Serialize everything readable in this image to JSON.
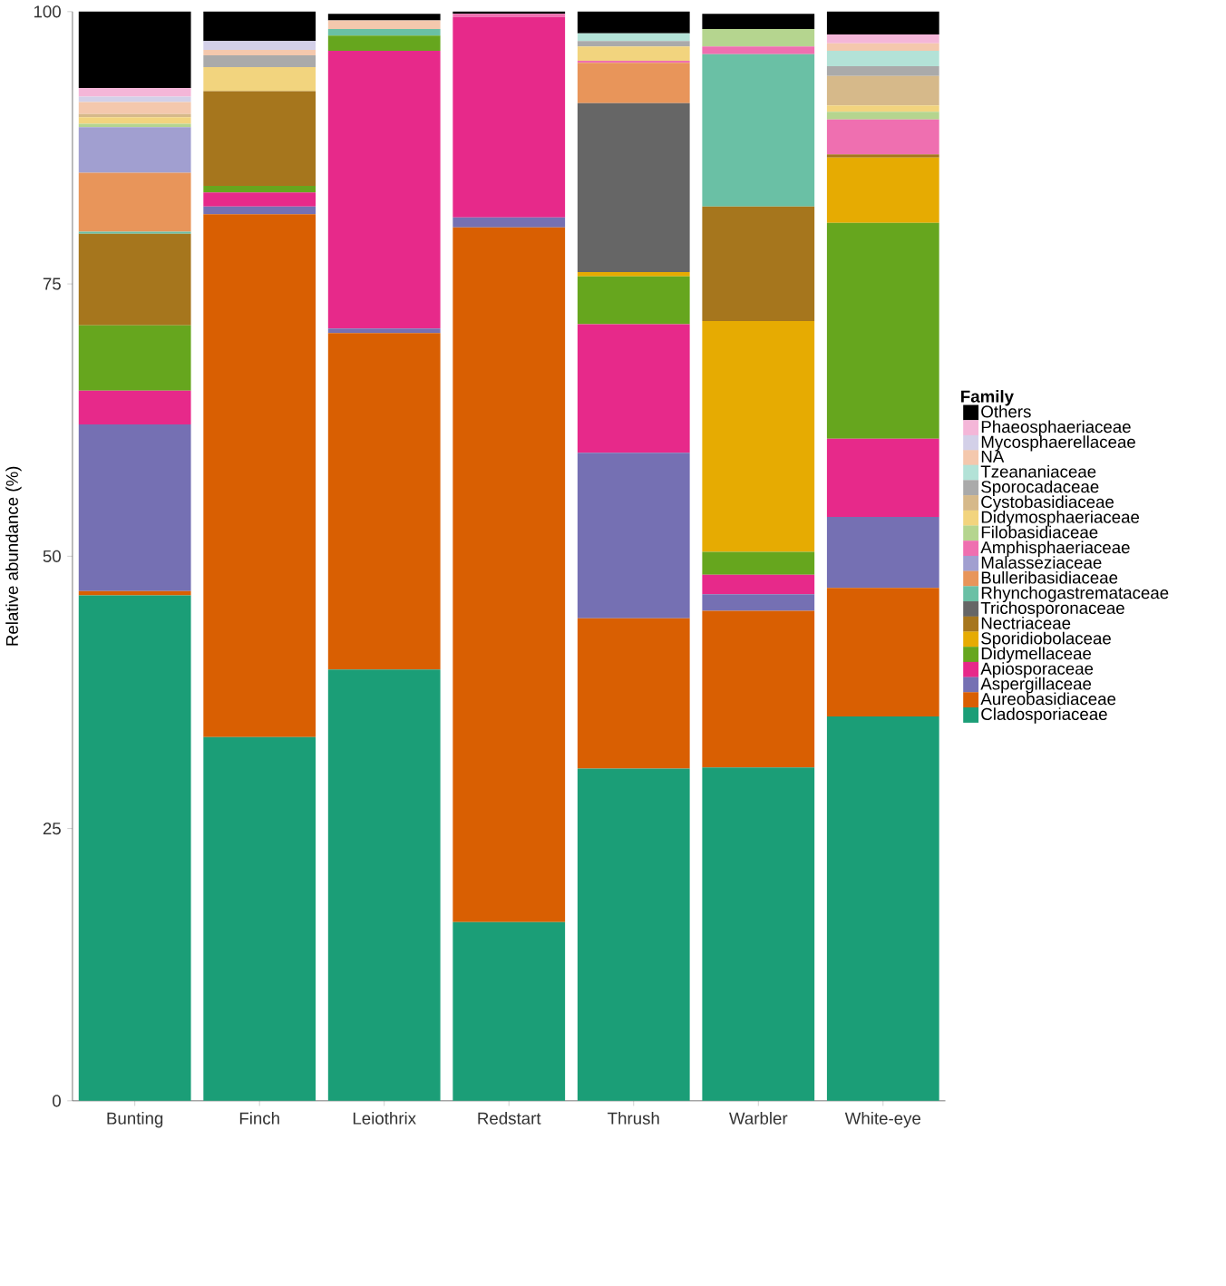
{
  "chart_data": {
    "type": "bar",
    "stacked": true,
    "ylabel": "Relative abundance (%)",
    "legend_title": "Family",
    "legend": "right",
    "categories": [
      "Bunting",
      "Finch",
      "Leiothrix",
      "Redstart",
      "Thrush",
      "Warbler",
      "White-eye"
    ],
    "ylim": [
      0,
      100
    ],
    "yticks": [
      0,
      25,
      50,
      75,
      100
    ],
    "series": [
      {
        "name": "Cladosporiaceae",
        "color": "#1b9e77",
        "values": [
          46.4,
          33.4,
          39.6,
          16.4,
          30.5,
          30.6,
          35.3
        ]
      },
      {
        "name": "Aureobasidiaceae",
        "color": "#d95f02",
        "values": [
          0.4,
          48.0,
          30.9,
          63.8,
          13.8,
          14.4,
          11.8
        ]
      },
      {
        "name": "Aspergillaceae",
        "color": "#7570b3",
        "values": [
          15.3,
          0.7,
          0.4,
          0.9,
          15.2,
          1.5,
          6.5
        ]
      },
      {
        "name": "Apiosporaceae",
        "color": "#e7298a",
        "values": [
          3.1,
          1.3,
          25.5,
          18.4,
          11.8,
          1.8,
          7.2
        ]
      },
      {
        "name": "Didymellaceae",
        "color": "#66a61e",
        "values": [
          6.0,
          0.6,
          1.4,
          null,
          4.4,
          2.1,
          19.8
        ]
      },
      {
        "name": "Sporidiobolaceae",
        "color": "#e6ab02",
        "values": [
          null,
          null,
          null,
          null,
          0.4,
          21.2,
          6.0
        ]
      },
      {
        "name": "Nectriaceae",
        "color": "#a6761d",
        "values": [
          8.4,
          8.7,
          null,
          null,
          null,
          10.5,
          0.3
        ]
      },
      {
        "name": "Trichosporonaceae",
        "color": "#666666",
        "values": [
          null,
          null,
          null,
          null,
          15.5,
          null,
          null
        ]
      },
      {
        "name": "Rhynchogastremataceae",
        "color": "#6ac0a5",
        "values": [
          0.2,
          null,
          0.6,
          null,
          null,
          14.0,
          null
        ]
      },
      {
        "name": "Bulleribasidiaceae",
        "color": "#e8955a",
        "values": [
          5.4,
          null,
          null,
          null,
          3.7,
          null,
          null
        ]
      },
      {
        "name": "Malasseziaceae",
        "color": "#a19fd0",
        "values": [
          4.2,
          null,
          null,
          null,
          null,
          null,
          null
        ]
      },
      {
        "name": "Amphisphaeriaceae",
        "color": "#ef6fb0",
        "values": [
          null,
          null,
          null,
          0.3,
          0.2,
          0.7,
          3.2
        ]
      },
      {
        "name": "Filobasidiaceae",
        "color": "#b5d58f",
        "values": [
          0.3,
          null,
          null,
          null,
          null,
          1.6,
          0.7
        ]
      },
      {
        "name": "Didymosphaeriaceae",
        "color": "#f2d47e",
        "values": [
          0.6,
          2.2,
          null,
          null,
          1.3,
          null,
          0.6
        ]
      },
      {
        "name": "Cystobasidiaceae",
        "color": "#d6b98a",
        "values": [
          0.3,
          null,
          null,
          null,
          null,
          null,
          2.7
        ]
      },
      {
        "name": "Sporocadaceae",
        "color": "#aaaaaa",
        "values": [
          null,
          1.1,
          null,
          null,
          0.5,
          null,
          0.9
        ]
      },
      {
        "name": "Tzeananiaceae",
        "color": "#b3e2d7",
        "values": [
          null,
          null,
          null,
          null,
          0.7,
          null,
          1.4
        ]
      },
      {
        "name": "NA",
        "color": "#f4c8ad",
        "values": [
          1.1,
          0.5,
          0.8,
          null,
          null,
          null,
          0.7
        ]
      },
      {
        "name": "Mycosphaerellaceae",
        "color": "#d3d0e8",
        "values": [
          0.5,
          0.8,
          null,
          null,
          null,
          null,
          null
        ]
      },
      {
        "name": "Phaeosphaeriaceae",
        "color": "#f4b6d8",
        "values": [
          0.8,
          null,
          null,
          null,
          null,
          null,
          0.8
        ]
      },
      {
        "name": "Others",
        "color": "#000000",
        "values": [
          7.0,
          2.7,
          0.6,
          0.2,
          2.0,
          1.4,
          2.1
        ]
      }
    ]
  }
}
